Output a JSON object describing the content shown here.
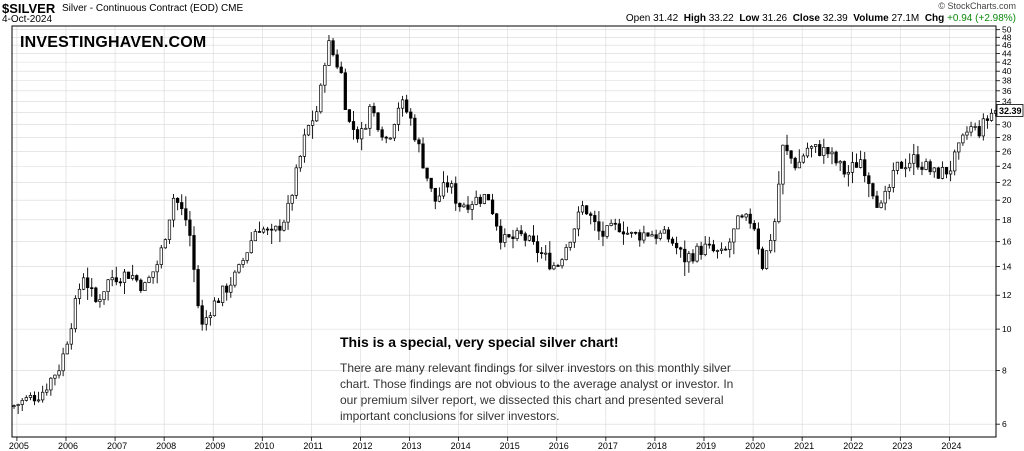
{
  "header": {
    "ticker": "$SILVER",
    "description": "Silver - Continuous Contract (EOD)",
    "exchange": "CME",
    "date": "4-Oct-2024",
    "copyright": "© StockCharts.com",
    "open_label": "Open",
    "open": "31.42",
    "high_label": "High",
    "high": "33.22",
    "low_label": "Low",
    "low": "31.26",
    "close_label": "Close",
    "close": "32.39",
    "volume_label": "Volume",
    "volume": "27.1M",
    "chg_label": "Chg",
    "chg": "+0.94 (+2.98%)"
  },
  "brand": "INVESTINGHAVEN.COM",
  "annotation": {
    "title": "This is a special, very special silver chart!",
    "body": "There are many relevant findings for silver investors on this monthly silver chart. Those findings are not obvious to the average analyst or investor. In our premium silver report, we dissected this chart and presented several important conclusions for silver investors."
  },
  "colors": {
    "up": "#ffffff",
    "down": "#000000",
    "grid": "#d8d8d8",
    "axis": "#000000"
  },
  "chart_data": {
    "type": "candlestick",
    "scale": "log",
    "x_labels": [
      "2005",
      "2006",
      "2007",
      "2008",
      "2009",
      "2010",
      "2011",
      "2012",
      "2013",
      "2014",
      "2015",
      "2016",
      "2017",
      "2018",
      "2019",
      "2020",
      "2021",
      "2022",
      "2023",
      "2024"
    ],
    "y_ticks": [
      6,
      8,
      10,
      12,
      14,
      16,
      18,
      20,
      22,
      24,
      26,
      28,
      30,
      32,
      34,
      36,
      38,
      40,
      42,
      44,
      46,
      48,
      50
    ],
    "ylim": [
      5.6,
      51
    ],
    "xlim": [
      2004.9,
      2024.95
    ],
    "last_price": "32.39",
    "anchors": [
      {
        "t": 2004.9,
        "p": 6.6
      },
      {
        "t": 2005.5,
        "p": 7.1
      },
      {
        "t": 2005.9,
        "p": 8.3
      },
      {
        "t": 2006.35,
        "p": 13.5
      },
      {
        "t": 2006.6,
        "p": 11.5
      },
      {
        "t": 2006.9,
        "p": 13.2
      },
      {
        "t": 2007.3,
        "p": 13.5
      },
      {
        "t": 2007.6,
        "p": 12.5
      },
      {
        "t": 2007.9,
        "p": 14.5
      },
      {
        "t": 2008.2,
        "p": 20.5
      },
      {
        "t": 2008.5,
        "p": 17.5
      },
      {
        "t": 2008.75,
        "p": 10.0
      },
      {
        "t": 2008.95,
        "p": 11.2
      },
      {
        "t": 2009.5,
        "p": 13.5
      },
      {
        "t": 2009.9,
        "p": 17.5
      },
      {
        "t": 2010.2,
        "p": 16.5
      },
      {
        "t": 2010.5,
        "p": 18.5
      },
      {
        "t": 2010.9,
        "p": 29.0
      },
      {
        "t": 2011.15,
        "p": 33.0
      },
      {
        "t": 2011.32,
        "p": 47.0
      },
      {
        "t": 2011.6,
        "p": 40.0
      },
      {
        "t": 2011.75,
        "p": 30.5
      },
      {
        "t": 2012.0,
        "p": 28.0
      },
      {
        "t": 2012.2,
        "p": 33.0
      },
      {
        "t": 2012.55,
        "p": 27.5
      },
      {
        "t": 2012.8,
        "p": 34.0
      },
      {
        "t": 2013.0,
        "p": 31.5
      },
      {
        "t": 2013.3,
        "p": 24.0
      },
      {
        "t": 2013.5,
        "p": 19.8
      },
      {
        "t": 2013.8,
        "p": 22.0
      },
      {
        "t": 2014.0,
        "p": 19.5
      },
      {
        "t": 2014.3,
        "p": 20.0
      },
      {
        "t": 2014.6,
        "p": 20.5
      },
      {
        "t": 2014.9,
        "p": 16.0
      },
      {
        "t": 2015.3,
        "p": 16.5
      },
      {
        "t": 2015.9,
        "p": 14.2
      },
      {
        "t": 2016.0,
        "p": 14.0
      },
      {
        "t": 2016.55,
        "p": 19.5
      },
      {
        "t": 2016.9,
        "p": 16.5
      },
      {
        "t": 2017.3,
        "p": 17.5
      },
      {
        "t": 2017.5,
        "p": 16.5
      },
      {
        "t": 2017.9,
        "p": 16.8
      },
      {
        "t": 2018.3,
        "p": 16.3
      },
      {
        "t": 2018.6,
        "p": 14.6
      },
      {
        "t": 2019.0,
        "p": 15.5
      },
      {
        "t": 2019.4,
        "p": 14.8
      },
      {
        "t": 2019.7,
        "p": 17.8
      },
      {
        "t": 2020.0,
        "p": 18.0
      },
      {
        "t": 2020.2,
        "p": 14.0
      },
      {
        "t": 2020.45,
        "p": 18.0
      },
      {
        "t": 2020.6,
        "p": 26.5
      },
      {
        "t": 2020.9,
        "p": 24.0
      },
      {
        "t": 2021.1,
        "p": 26.5
      },
      {
        "t": 2021.5,
        "p": 26.0
      },
      {
        "t": 2021.9,
        "p": 23.0
      },
      {
        "t": 2022.2,
        "p": 25.0
      },
      {
        "t": 2022.6,
        "p": 19.0
      },
      {
        "t": 2022.95,
        "p": 24.0
      },
      {
        "t": 2023.3,
        "p": 25.0
      },
      {
        "t": 2023.7,
        "p": 23.0
      },
      {
        "t": 2024.0,
        "p": 23.5
      },
      {
        "t": 2024.4,
        "p": 29.5
      },
      {
        "t": 2024.6,
        "p": 29.0
      },
      {
        "t": 2024.9,
        "p": 32.39
      }
    ]
  }
}
